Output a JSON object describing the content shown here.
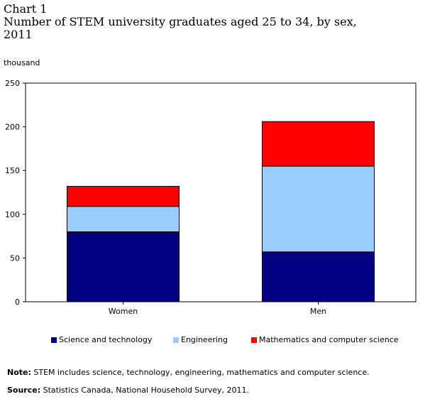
{
  "chart_data": {
    "type": "bar",
    "stacked": true,
    "chart_number": "Chart 1",
    "title": "Number of STEM university graduates aged 25 to 34, by sex, 2011",
    "ylabel": "thousand",
    "xlabel": "",
    "categories": [
      "Women",
      "Men"
    ],
    "ylim": [
      0,
      250
    ],
    "yticks": [
      0,
      50,
      100,
      150,
      200,
      250
    ],
    "grid": false,
    "legend_position": "bottom",
    "series": [
      {
        "name": "Science and technology",
        "color": "#000080",
        "values": [
          80,
          57
        ]
      },
      {
        "name": "Engineering",
        "color": "#99ccff",
        "values": [
          29,
          98
        ]
      },
      {
        "name": "Mathematics and computer science",
        "color": "#ff0000",
        "values": [
          23,
          51
        ]
      }
    ]
  },
  "notes": {
    "note_label": "Note:",
    "note_text": " STEM includes science, technology, engineering, mathematics and computer science.",
    "source_label": "Source:",
    "source_text": " Statistics Canada, National Household Survey, 2011."
  }
}
